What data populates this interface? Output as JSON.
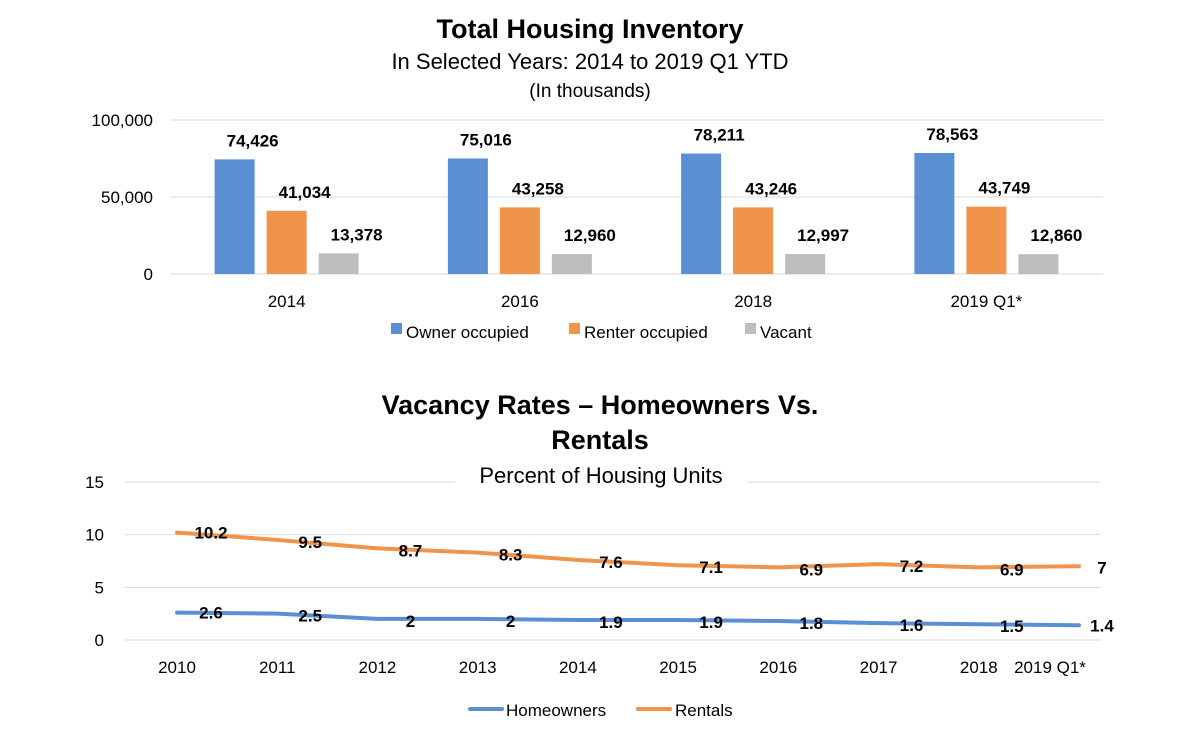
{
  "colors": {
    "owner": "#5B8FD3",
    "renter": "#F0934B",
    "vacant": "#BDBDBD",
    "homeowners": "#5B8FD3",
    "rentals": "#F0934B",
    "grid": "#D9D9D9"
  },
  "chart_data": [
    {
      "type": "bar",
      "title": "Total Housing Inventory",
      "subtitle": "In Selected Years: 2014 to 2019 Q1 YTD",
      "subtitle2": "(In thousands)",
      "categories": [
        "2014",
        "2016",
        "2018",
        "2019 Q1*"
      ],
      "series": [
        {
          "name": "Owner occupied",
          "values": [
            74426,
            75016,
            78211,
            78563
          ],
          "labels": [
            "74,426",
            "75,016",
            "78,211",
            "78,563"
          ]
        },
        {
          "name": "Renter occupied",
          "values": [
            41034,
            43258,
            43246,
            43749
          ],
          "labels": [
            "41,034",
            "43,258",
            "43,246",
            "43,749"
          ]
        },
        {
          "name": "Vacant",
          "values": [
            13378,
            12960,
            12997,
            12860
          ],
          "labels": [
            "13,378",
            "12,960",
            "12,997",
            "12,860"
          ]
        }
      ],
      "ylim": [
        0,
        100000
      ],
      "yticks": [
        "0",
        "50,000",
        "100,000"
      ],
      "grid": true,
      "legend": "bottom"
    },
    {
      "type": "line",
      "title_line1": "Vacancy Rates – Homeowners Vs.",
      "title_line2": "Rentals",
      "subtitle": "Percent of Housing Units",
      "x": [
        "2010",
        "2011",
        "2012",
        "2013",
        "2014",
        "2015",
        "2016",
        "2017",
        "2018",
        "2019 Q1*"
      ],
      "series": [
        {
          "name": "Homeowners",
          "values": [
            2.6,
            2.5,
            2,
            2,
            1.9,
            1.9,
            1.8,
            1.6,
            1.5,
            1.4
          ],
          "labels": [
            "2.6",
            "2.5",
            "2",
            "2",
            "1.9",
            "1.9",
            "1.8",
            "1.6",
            "1.5",
            "1.4"
          ]
        },
        {
          "name": "Rentals",
          "values": [
            10.2,
            9.5,
            8.7,
            8.3,
            7.6,
            7.1,
            6.9,
            7.2,
            6.9,
            7
          ],
          "labels": [
            "10.2",
            "9.5",
            "8.7",
            "8.3",
            "7.6",
            "7.1",
            "6.9",
            "7.2",
            "6.9",
            "7"
          ]
        }
      ],
      "ylim": [
        0,
        15
      ],
      "yticks": [
        "0",
        "5",
        "10",
        "15"
      ],
      "grid": true,
      "legend": "bottom"
    }
  ]
}
